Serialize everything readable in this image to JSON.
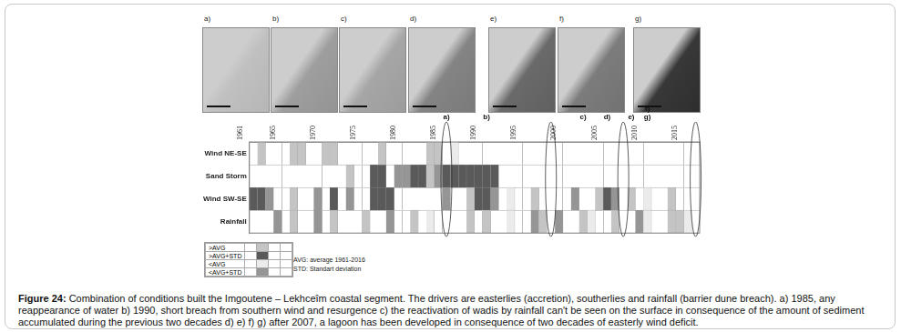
{
  "figure": {
    "panels": [
      "a)",
      "b)",
      "c)",
      "d)",
      "e)",
      "f)",
      "g)"
    ],
    "legend_notes": [
      "AVG: average 1961-2016",
      "STD: Standart deviation"
    ],
    "caption": {
      "label": "Figure 24:",
      "text": "Combination of conditions built the Imgoutene – Lekhceîm coastal segment. The drivers are easterlies (accretion), southerlies and rainfall (barrier dune breach). a) 1985, any reappearance of water b) 1990, short breach from southern wind and resurgence c) the reactivation of wadis by rainfall can't be seen on the surface in consequence of the amount of sediment accumulated during the previous two decades d) e) f) g) after 2007, a lagoon has been developed in consequence of two decades of easterly wind deficit."
    }
  },
  "chart_data": {
    "type": "bar",
    "orientation": "horizontal",
    "rows": [
      "Wind NE-SE",
      "Sand Storm",
      "Wind SW-SE",
      "Rainfall"
    ],
    "xlim": [
      1961,
      2017
    ],
    "xticks": [
      1961,
      1965,
      1970,
      1975,
      1980,
      1985,
      1990,
      1995,
      2000,
      2005,
      2010,
      2015
    ],
    "grid": true,
    "legend": "bottom left",
    "series": [
      {
        "name": ">AVG",
        "color": "#c4c4c4",
        "cells": {
          "Wind NE-SE": [
            1962,
            1966,
            1967,
            1970,
            1971,
            1977,
            1983,
            1984
          ],
          "Sand Storm": [
            1973,
            1983
          ],
          "Wind SW-SE": [
            1966,
            1988,
            1996,
            2004,
            2008,
            2013
          ],
          "Rainfall": [
            1966,
            1971,
            1975,
            1981,
            1988,
            1990,
            1997,
            2002,
            2006,
            2013,
            2014
          ]
        }
      },
      {
        "name": ">AVG+STD",
        "color": "#5a5a5a",
        "cells": {
          "Sand Storm": [
            1976,
            1977,
            1981,
            1982,
            1985,
            1986,
            1987,
            1988,
            1989,
            1990,
            1991
          ],
          "Wind SW-SE": [
            1961,
            1962,
            1971,
            1976,
            1977,
            1978,
            1989,
            1990,
            2005
          ]
        }
      },
      {
        "name": "<AVG",
        "color": "#ebebeb",
        "cells": {
          "Wind NE-SE": [
            1986
          ],
          "Wind SW-SE": [
            1993,
            2010
          ],
          "Rainfall": [
            1983,
            1993,
            2003,
            2010,
            2015
          ]
        }
      },
      {
        "name": "<AVG+STD",
        "color": "#959595",
        "cells": {
          "Sand Storm": [
            1979,
            1980,
            1984
          ],
          "Wind SW-SE": [
            1963,
            1969,
            1973,
            1985,
            1991,
            2001,
            2006
          ],
          "Rainfall": [
            1964,
            1969,
            1978,
            1996,
            1999,
            2009
          ]
        }
      }
    ],
    "markers": [
      {
        "label": "a)",
        "year": 1985
      },
      {
        "label": "b)",
        "year": 1990
      },
      {
        "label": "c)",
        "year": 2002
      },
      {
        "label": "d)",
        "year": 2005
      },
      {
        "label": "e)",
        "year": 2008
      },
      {
        "label": "g)",
        "year": 2010
      },
      {
        "label": "f)",
        "year": 2010
      }
    ],
    "highlight_years": [
      1985,
      1998,
      2007,
      2016
    ]
  }
}
